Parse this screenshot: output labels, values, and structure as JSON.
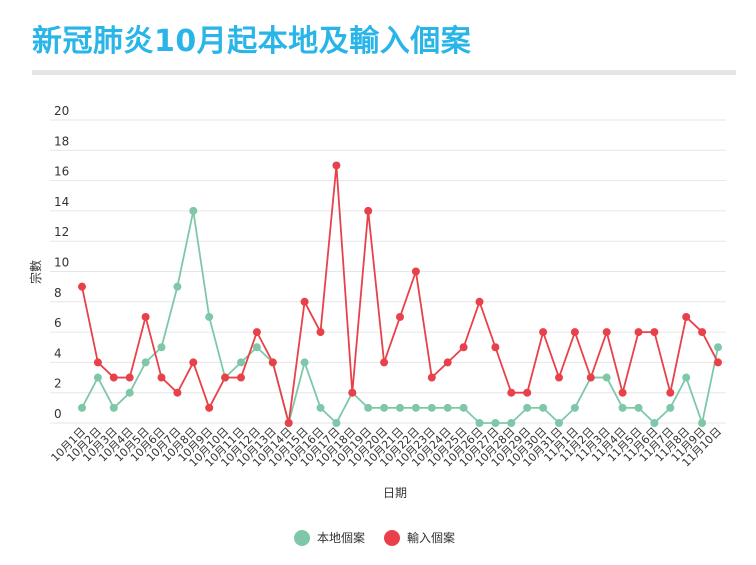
{
  "page": {
    "title": "新冠肺炎10月起本地及輸入個案"
  },
  "colors": {
    "title": "#29b5e8",
    "local": "#7ec8a9",
    "imported": "#e8414a",
    "grid": "#e6e6e6"
  },
  "chart_data": {
    "type": "line",
    "title": "新冠肺炎10月起本地及輸入個案",
    "xlabel": "日期",
    "ylabel": "宗數",
    "ylim": [
      0,
      20
    ],
    "yticks": [
      0,
      2,
      4,
      6,
      8,
      10,
      12,
      14,
      16,
      18,
      20
    ],
    "grid": true,
    "legend_position": "bottom-center",
    "categories": [
      "10月1日",
      "10月2日",
      "10月3日",
      "10月4日",
      "10月5日",
      "10月6日",
      "10月7日",
      "10月8日",
      "10月9日",
      "10月10日",
      "10月11日",
      "10月12日",
      "10月13日",
      "10月14日",
      "10月15日",
      "10月16日",
      "10月17日",
      "10月18日",
      "10月19日",
      "10月20日",
      "10月21日",
      "10月22日",
      "10月23日",
      "10月24日",
      "10月25日",
      "10月26日",
      "10月27日",
      "10月28日",
      "10月29日",
      "10月30日",
      "10月31日",
      "11月1日",
      "11月2日",
      "11月3日",
      "11月4日",
      "11月5日",
      "11月6日",
      "11月7日",
      "11月8日",
      "11月9日",
      "11月10日"
    ],
    "series": [
      {
        "name": "本地個案",
        "color": "#7ec8a9",
        "values": [
          1,
          3,
          1,
          2,
          4,
          5,
          9,
          14,
          7,
          3,
          4,
          5,
          4,
          0,
          4,
          1,
          0,
          2,
          1,
          1,
          1,
          1,
          1,
          1,
          1,
          0,
          0,
          0,
          1,
          1,
          0,
          1,
          3,
          3,
          1,
          1,
          0,
          1,
          3,
          0,
          5
        ]
      },
      {
        "name": "輸入個案",
        "color": "#e8414a",
        "values": [
          9,
          4,
          3,
          3,
          7,
          3,
          2,
          4,
          1,
          3,
          3,
          6,
          4,
          0,
          8,
          6,
          17,
          2,
          14,
          4,
          7,
          10,
          3,
          4,
          5,
          8,
          5,
          2,
          2,
          6,
          3,
          6,
          3,
          6,
          2,
          6,
          6,
          2,
          7,
          6,
          4
        ]
      }
    ]
  }
}
